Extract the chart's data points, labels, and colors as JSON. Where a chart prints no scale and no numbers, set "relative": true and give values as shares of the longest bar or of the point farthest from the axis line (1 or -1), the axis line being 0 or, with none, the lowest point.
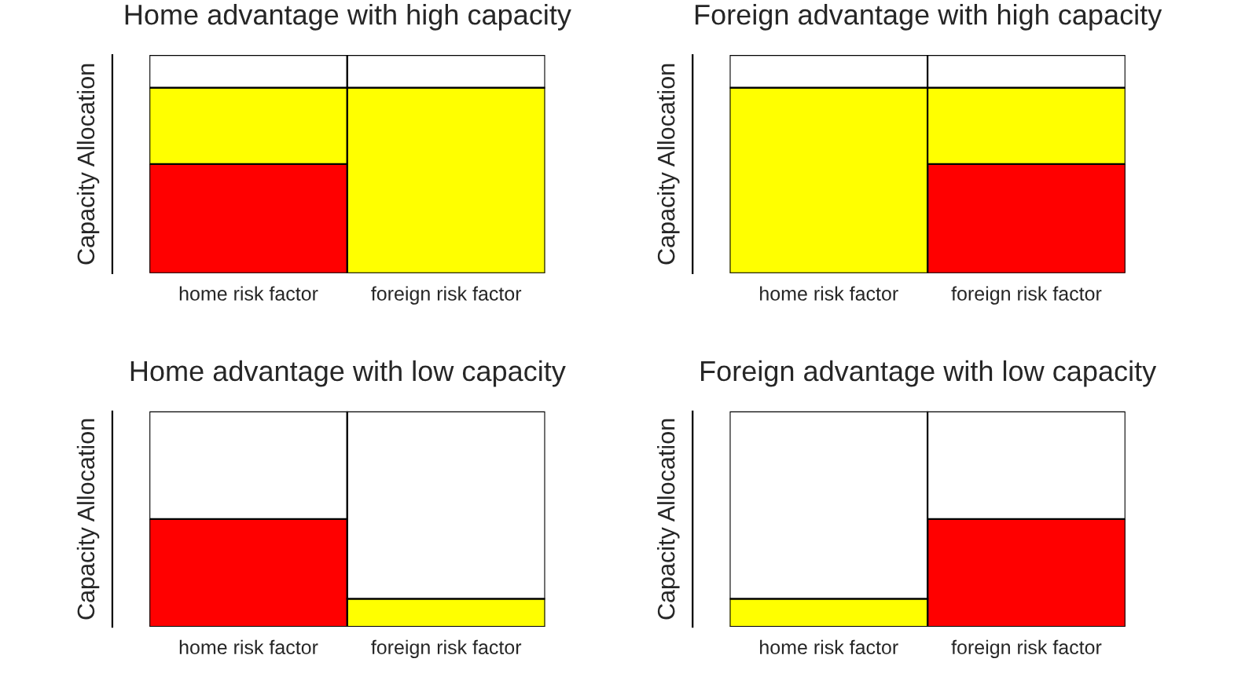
{
  "chart_data": [
    {
      "type": "bar",
      "title": "Home advantage with high capacity",
      "ylabel": "Capacity Allocation",
      "categories": [
        "home risk factor",
        "foreign risk factor"
      ],
      "stacked": true,
      "relative": true,
      "grid": false,
      "tick_labels": "x",
      "series": [
        {
          "color": "#ff0000",
          "values": [
            0.5,
            0
          ]
        },
        {
          "color": "#ffff00",
          "values": [
            0.35,
            0.85
          ]
        },
        {
          "color": "#ffffff",
          "values": [
            0.15,
            0.15
          ]
        }
      ]
    },
    {
      "type": "bar",
      "title": "Foreign advantage with high capacity",
      "ylabel": "Capacity Allocation",
      "categories": [
        "home risk factor",
        "foreign risk factor"
      ],
      "stacked": true,
      "relative": true,
      "grid": false,
      "tick_labels": "x",
      "series": [
        {
          "color": "#ff0000",
          "values": [
            0,
            0.5
          ]
        },
        {
          "color": "#ffff00",
          "values": [
            0.85,
            0.35
          ]
        },
        {
          "color": "#ffffff",
          "values": [
            0.15,
            0.15
          ]
        }
      ]
    },
    {
      "type": "bar",
      "title": "Home advantage with low capacity",
      "ylabel": "Capacity Allocation",
      "categories": [
        "home risk factor",
        "foreign risk factor"
      ],
      "stacked": true,
      "relative": true,
      "grid": false,
      "tick_labels": "x",
      "series": [
        {
          "color": "#ff0000",
          "values": [
            0.5,
            0
          ]
        },
        {
          "color": "#ffff00",
          "values": [
            0,
            0.13
          ]
        },
        {
          "color": "#ffffff",
          "values": [
            0.5,
            0.87
          ]
        }
      ]
    },
    {
      "type": "bar",
      "title": "Foreign advantage with low capacity",
      "ylabel": "Capacity Allocation",
      "categories": [
        "home risk factor",
        "foreign risk factor"
      ],
      "stacked": true,
      "relative": true,
      "grid": false,
      "tick_labels": "x",
      "series": [
        {
          "color": "#ff0000",
          "values": [
            0,
            0.5
          ]
        },
        {
          "color": "#ffff00",
          "values": [
            0.13,
            0
          ]
        },
        {
          "color": "#ffffff",
          "values": [
            0.87,
            0.5
          ]
        }
      ]
    }
  ]
}
